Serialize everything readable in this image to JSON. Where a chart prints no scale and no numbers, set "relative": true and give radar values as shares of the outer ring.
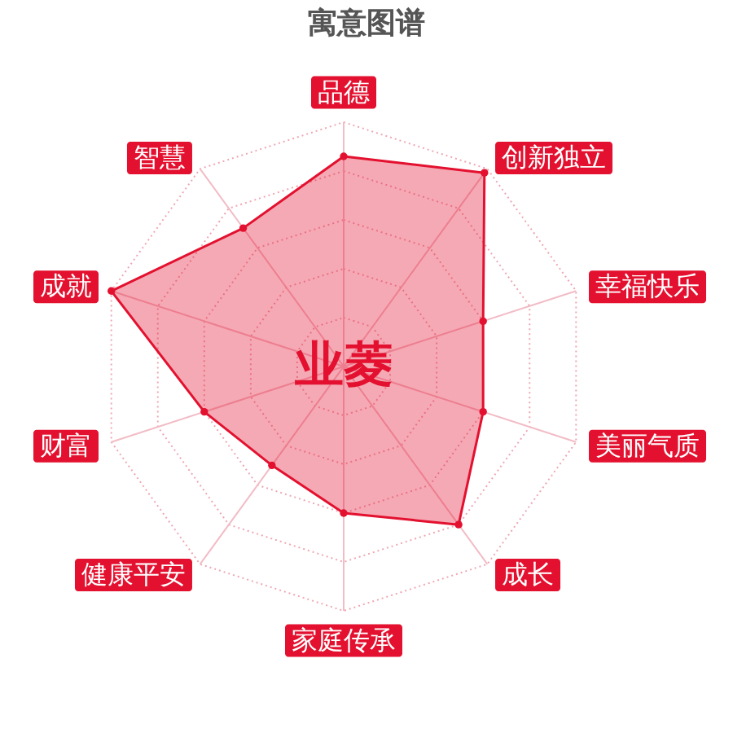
{
  "chart_data": {
    "type": "radar",
    "title": "寓意图谱",
    "categories": [
      "品德",
      "创新独立",
      "幸福快乐",
      "美丽气质",
      "成长",
      "家庭传承",
      "健康平安",
      "财富",
      "成就",
      "智慧"
    ],
    "series": [
      {
        "color": "#e3112f",
        "values": [
          0.86,
          0.98,
          0.6,
          0.6,
          0.8,
          0.6,
          0.5,
          0.6,
          1,
          0.7
        ]
      }
    ],
    "relative": true,
    "grid": true,
    "marker": "circle",
    "annotations": [
      "业菱"
    ]
  }
}
